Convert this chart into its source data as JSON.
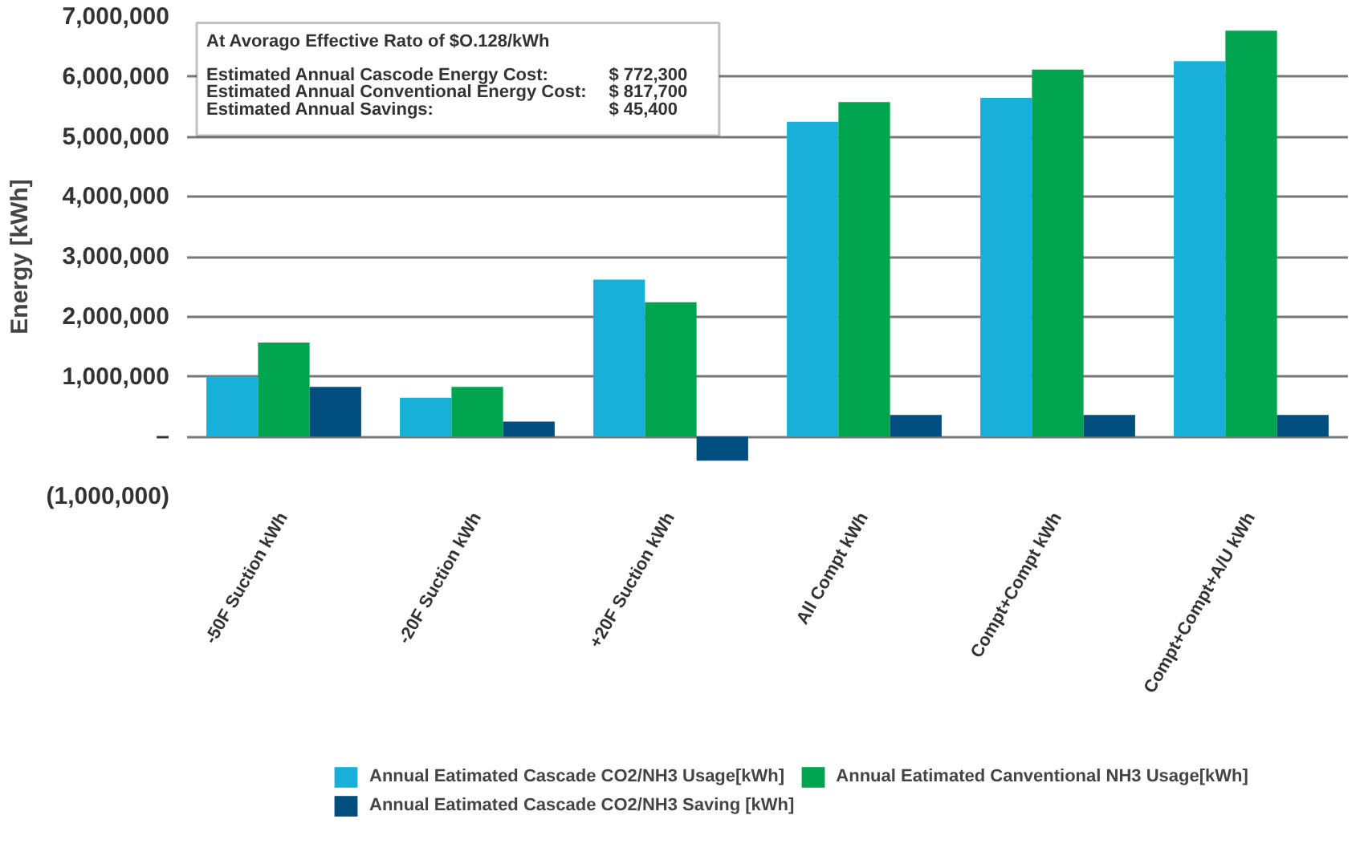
{
  "chart_data": {
    "type": "bar",
    "ylabel": "Energy [kWh]",
    "categories": [
      "-50F Suction kWh",
      "-20F Suction kWh",
      "+20F Suction kWh",
      "All Compt kWh",
      "Compt+Compt kWh",
      "Compt+Compt+A/U kWh"
    ],
    "series": [
      {
        "name": "Annual Eatimated Cascade CO2/NH3 Usage[kWh]",
        "color": "#18b0d8",
        "values": [
          1000000,
          650000,
          2620000,
          5250000,
          5650000,
          6260000
        ]
      },
      {
        "name": "Annual Eatimated Canventional NH3 Usage[kWh]",
        "color": "#00a44e",
        "values": [
          1570000,
          830000,
          2240000,
          5580000,
          6120000,
          6770000
        ]
      },
      {
        "name": "Annual Eatimated Cascade CO2/NH3 Saving [kWh]",
        "color": "#004e80",
        "values": [
          830000,
          250000,
          -400000,
          360000,
          360000,
          360000
        ]
      }
    ],
    "ylim": [
      -1000000,
      7000000
    ],
    "yticks": [
      {
        "value": -1000000,
        "label": "(1,000,000)"
      },
      {
        "value": 0,
        "label": "–"
      },
      {
        "value": 1000000,
        "label": "1,000,000"
      },
      {
        "value": 2000000,
        "label": "2,000,000"
      },
      {
        "value": 3000000,
        "label": "3,000,000"
      },
      {
        "value": 4000000,
        "label": "4,000,000"
      },
      {
        "value": 5000000,
        "label": "5,000,000"
      },
      {
        "value": 6000000,
        "label": "6,000,000"
      },
      {
        "value": 7000000,
        "label": "7,000,000"
      }
    ],
    "grid": "y",
    "legend": "bottom",
    "annotations": [
      "At Avorago Effective Rato of  $O.128/kWh",
      "Estimated Annual Cascode Energy Cost:",
      "$ 772,300",
      "Estimated Annual Conventional Energy Cost:",
      "$  817,700",
      "Estimated Annual Savings:",
      "$     45,400"
    ]
  }
}
